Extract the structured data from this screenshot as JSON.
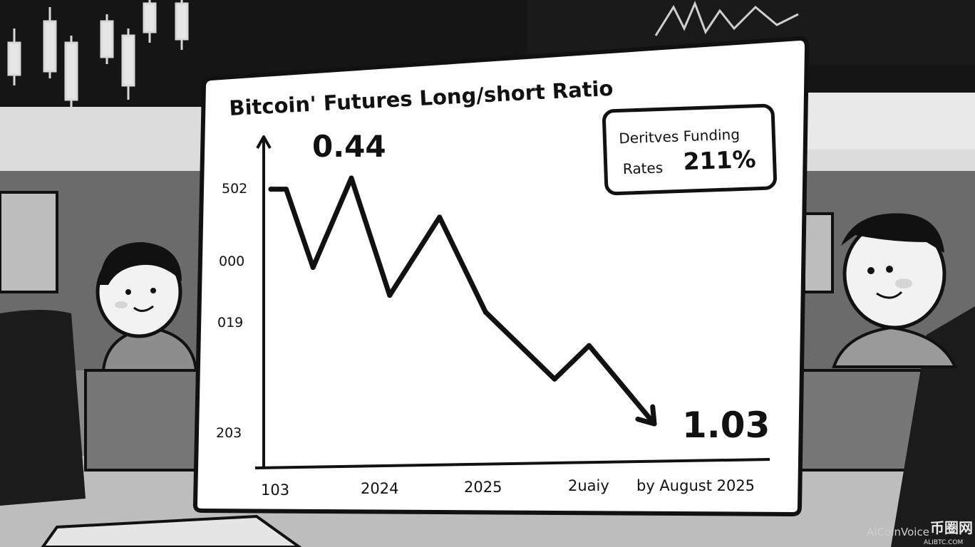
{
  "chart_data": {
    "type": "line",
    "title": "Bitcoin'  Futures Long/short Ratio",
    "y_tick_labels": [
      "502",
      "000",
      "019",
      "203"
    ],
    "x_tick_labels": [
      "103",
      "2024",
      "2025",
      "2uaiy",
      "by August 2025"
    ],
    "series": [
      {
        "values": [
          0.44,
          0.44,
          0.3,
          0.46,
          0.25,
          0.39,
          0.22,
          0.1,
          0.16,
          0.02
        ]
      }
    ],
    "annotations": {
      "peak_label": "0.44",
      "end_label": "1.03"
    },
    "badge": {
      "line1": "Deritves Funding",
      "line2": "Rates",
      "value": "211%"
    }
  },
  "watermark": {
    "text": "AICoinVoice",
    "brand": "币圈网",
    "url": "ALIBTC.COM"
  }
}
